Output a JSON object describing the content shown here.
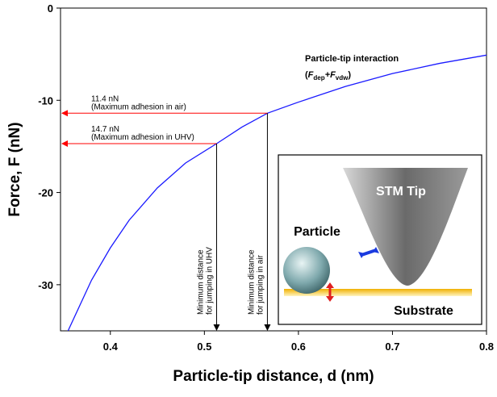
{
  "chart_data": {
    "type": "line",
    "x_label": "Particle-tip distance, d (nm)",
    "y_label": "Force, F (nN)",
    "xlim": [
      0.347,
      0.8
    ],
    "ylim": [
      -35,
      0
    ],
    "xticks": [
      0.4,
      0.5,
      0.6,
      0.7,
      0.8
    ],
    "yticks": [
      0,
      -10,
      -20,
      -30
    ],
    "series": [
      {
        "name": "Particle-tip interaction",
        "color": "#1a1aff",
        "x": [
          0.355,
          0.38,
          0.4,
          0.42,
          0.45,
          0.48,
          0.513,
          0.54,
          0.567,
          0.6,
          0.65,
          0.7,
          0.75,
          0.8
        ],
        "values": [
          -35,
          -29.5,
          -26,
          -23,
          -19.5,
          -16.8,
          -14.7,
          -12.9,
          -11.4,
          -10.2,
          -8.5,
          -7.1,
          -6.0,
          -5.1
        ]
      }
    ],
    "series_formula": [
      "(",
      "F",
      "dep",
      "+F",
      "vdw",
      ")"
    ],
    "markers": [
      {
        "x": 0.567,
        "y": -11.4,
        "value_label": "11.4 nN",
        "note": "(Maximum adhesion in air)",
        "x_note": [
          "Minimum distance",
          "for jumping in air"
        ]
      },
      {
        "x": 0.513,
        "y": -14.7,
        "value_label": "14.7 nN",
        "note": "(Maximum adhesion in UHV)",
        "x_note": [
          "Minimum distance",
          "for jumping in UHV"
        ]
      }
    ],
    "inset": {
      "tip": "STM Tip",
      "particle": "Particle",
      "substrate": "Substrate"
    }
  }
}
